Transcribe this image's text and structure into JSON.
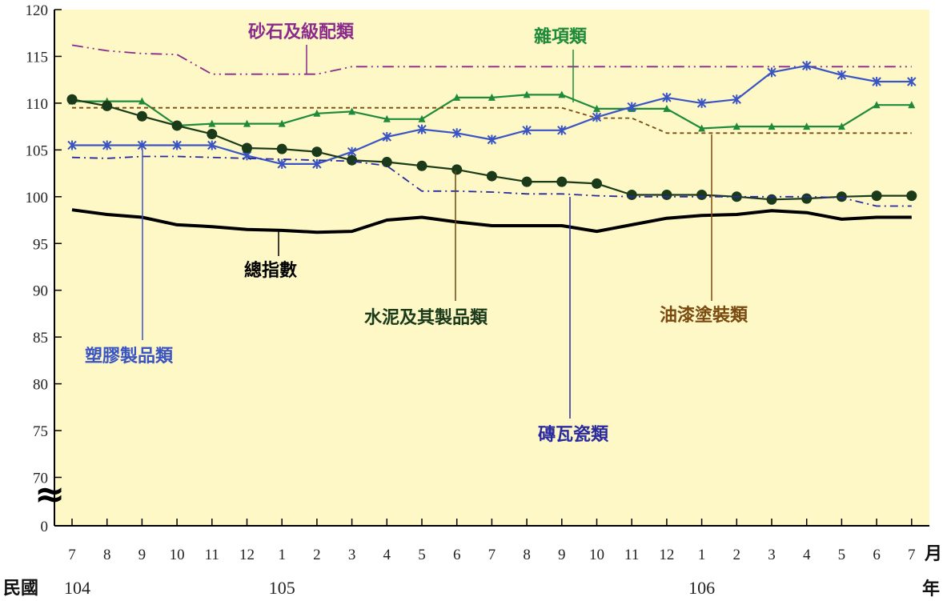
{
  "chart_data": {
    "type": "line",
    "title": "",
    "xlabel": "",
    "ylabel": "",
    "month_unit": "月",
    "year_unit": "年",
    "year_prefix": "民國",
    "categories": [
      "7",
      "8",
      "9",
      "10",
      "11",
      "12",
      "1",
      "2",
      "3",
      "4",
      "5",
      "6",
      "7",
      "8",
      "9",
      "10",
      "11",
      "12",
      "1",
      "2",
      "3",
      "4",
      "5",
      "6",
      "7"
    ],
    "year_labels": [
      {
        "index": 0,
        "text": "104"
      },
      {
        "index": 6,
        "text": "105"
      },
      {
        "index": 18,
        "text": "106"
      }
    ],
    "y_ticks": [
      "0",
      "70",
      "75",
      "80",
      "85",
      "90",
      "95",
      "100",
      "105",
      "110",
      "115",
      "120"
    ],
    "ylim": [
      65,
      120
    ],
    "axis_break": true,
    "break_symbol": "≈",
    "background_color": "#fdf8c6",
    "series": [
      {
        "name": "砂石及級配類",
        "color": "#8b2a8b",
        "style": "dashdotdot",
        "marker": "none",
        "values": [
          116.2,
          115.6,
          115.3,
          115.2,
          113.1,
          113.1,
          113.1,
          113.1,
          113.9,
          113.9,
          113.9,
          113.9,
          113.9,
          113.9,
          113.9,
          113.9,
          113.9,
          113.9,
          113.9,
          113.9,
          113.9,
          113.9,
          113.9,
          113.9,
          113.9
        ]
      },
      {
        "name": "雜項類",
        "color": "#1e8a3a",
        "style": "solid",
        "marker": "triangle",
        "values": [
          110.2,
          110.2,
          110.2,
          107.6,
          107.8,
          107.8,
          107.8,
          108.9,
          109.1,
          108.3,
          108.3,
          110.6,
          110.6,
          110.9,
          110.9,
          109.4,
          109.4,
          109.4,
          107.3,
          107.5,
          107.5,
          107.5,
          107.5,
          109.8,
          109.8
        ]
      },
      {
        "name": "油漆塗裝類",
        "color": "#7a4a10",
        "style": "dash",
        "marker": "none",
        "values": [
          109.5,
          109.5,
          109.5,
          109.5,
          109.5,
          109.5,
          109.5,
          109.5,
          109.5,
          109.5,
          109.5,
          109.5,
          109.5,
          109.5,
          109.5,
          108.4,
          108.4,
          106.8,
          106.8,
          106.8,
          106.8,
          106.8,
          106.8,
          106.8,
          106.8
        ]
      },
      {
        "name": "塑膠製品類",
        "color": "#3a54c4",
        "style": "solid",
        "marker": "star",
        "values": [
          105.5,
          105.5,
          105.5,
          105.5,
          105.5,
          104.4,
          103.5,
          103.5,
          104.8,
          106.4,
          107.2,
          106.8,
          106.1,
          107.1,
          107.1,
          108.5,
          109.6,
          110.6,
          110.0,
          110.4,
          113.3,
          114.0,
          113.0,
          112.3,
          112.3
        ]
      },
      {
        "name": "水泥及其製品類",
        "color": "#1a3a1a",
        "style": "solid",
        "marker": "circle",
        "values": [
          110.4,
          109.7,
          108.6,
          107.6,
          106.7,
          105.2,
          105.1,
          104.8,
          103.9,
          103.7,
          103.3,
          102.9,
          102.2,
          101.6,
          101.6,
          101.4,
          100.2,
          100.2,
          100.2,
          100.0,
          99.7,
          99.8,
          100.0,
          100.1,
          100.1
        ]
      },
      {
        "name": "磚瓦瓷類",
        "color": "#2a2aa0",
        "style": "dashdot",
        "marker": "none",
        "values": [
          104.2,
          104.1,
          104.3,
          104.3,
          104.2,
          104.1,
          104.0,
          103.9,
          103.8,
          103.3,
          100.6,
          100.6,
          100.5,
          100.3,
          100.3,
          100.1,
          100.0,
          100.0,
          100.0,
          100.0,
          100.0,
          100.0,
          99.9,
          99.0,
          99.0
        ]
      },
      {
        "name": "總指數",
        "color": "#000000",
        "style": "solid-bold",
        "marker": "none",
        "values": [
          98.6,
          98.1,
          97.8,
          97.0,
          96.8,
          96.5,
          96.4,
          96.2,
          96.3,
          97.5,
          97.8,
          97.3,
          96.9,
          96.9,
          96.9,
          96.3,
          97.0,
          97.7,
          98.0,
          98.1,
          98.5,
          98.3,
          97.6,
          97.8,
          97.8
        ]
      }
    ]
  }
}
